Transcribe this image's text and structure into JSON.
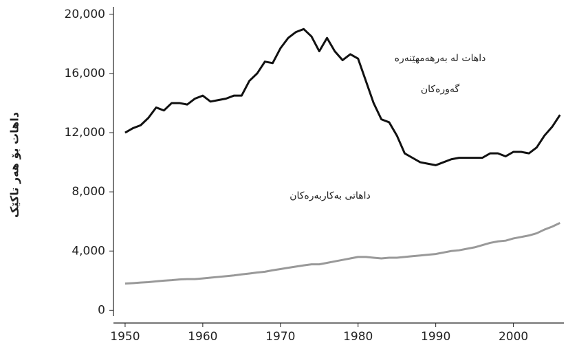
{
  "chart_data": {
    "type": "line",
    "y_label": "داهات بۆ هەر تاکێک",
    "annotations": [
      {
        "lines": [
          "داهات لە بەرهەمهێنەرە",
          "گەورەکان"
        ]
      },
      {
        "lines": [
          "داهاتی بەکاربەرەکان"
        ]
      }
    ],
    "x": [
      1950,
      1951,
      1952,
      1953,
      1954,
      1955,
      1956,
      1957,
      1958,
      1959,
      1960,
      1961,
      1962,
      1963,
      1964,
      1965,
      1966,
      1967,
      1968,
      1969,
      1970,
      1971,
      1972,
      1973,
      1974,
      1975,
      1976,
      1977,
      1978,
      1979,
      1980,
      1981,
      1982,
      1983,
      1984,
      1985,
      1986,
      1987,
      1988,
      1989,
      1990,
      1991,
      1992,
      1993,
      1994,
      1995,
      1996,
      1997,
      1998,
      1999,
      2000,
      2001,
      2002,
      2003,
      2004,
      2005,
      2006
    ],
    "series": [
      {
        "color": "#111111",
        "values": [
          12000,
          12300,
          12500,
          13000,
          13700,
          13500,
          14000,
          14000,
          13900,
          14300,
          14500,
          14100,
          14200,
          14300,
          14500,
          14500,
          15500,
          16000,
          16800,
          16700,
          17700,
          18400,
          18800,
          19000,
          18500,
          17500,
          18400,
          17500,
          16900,
          17300,
          17000,
          15500,
          14000,
          12900,
          12700,
          11800,
          10600,
          10300,
          10000,
          9900,
          9800,
          10000,
          10200,
          10300,
          10300,
          10300,
          10300,
          10600,
          10600,
          10400,
          10700,
          10700,
          10600,
          11000,
          11800,
          12400,
          13200
        ]
      },
      {
        "color": "#999999",
        "values": [
          1800,
          1830,
          1870,
          1900,
          1950,
          2000,
          2030,
          2080,
          2100,
          2100,
          2150,
          2200,
          2250,
          2300,
          2350,
          2420,
          2480,
          2550,
          2600,
          2700,
          2780,
          2870,
          2950,
          3030,
          3100,
          3100,
          3200,
          3300,
          3400,
          3500,
          3600,
          3600,
          3550,
          3500,
          3550,
          3550,
          3600,
          3650,
          3700,
          3750,
          3800,
          3900,
          4000,
          4050,
          4150,
          4250,
          4400,
          4550,
          4650,
          4700,
          4850,
          4950,
          5050,
          5200,
          5450,
          5650,
          5900
        ]
      }
    ],
    "xlim": [
      1948.5,
      2006.5
    ],
    "xticks": [
      1950,
      1960,
      1970,
      1980,
      1990,
      2000
    ],
    "ylim": [
      -400,
      20500
    ],
    "yticks": [
      0,
      {
        "value": 4000,
        "label": "4,000"
      },
      {
        "value": 8000,
        "label": "8,000"
      },
      {
        "value": 12000,
        "label": "12,000"
      },
      {
        "value": 16000,
        "label": "16,000"
      },
      {
        "value": 20000,
        "label": "20,000"
      }
    ]
  }
}
